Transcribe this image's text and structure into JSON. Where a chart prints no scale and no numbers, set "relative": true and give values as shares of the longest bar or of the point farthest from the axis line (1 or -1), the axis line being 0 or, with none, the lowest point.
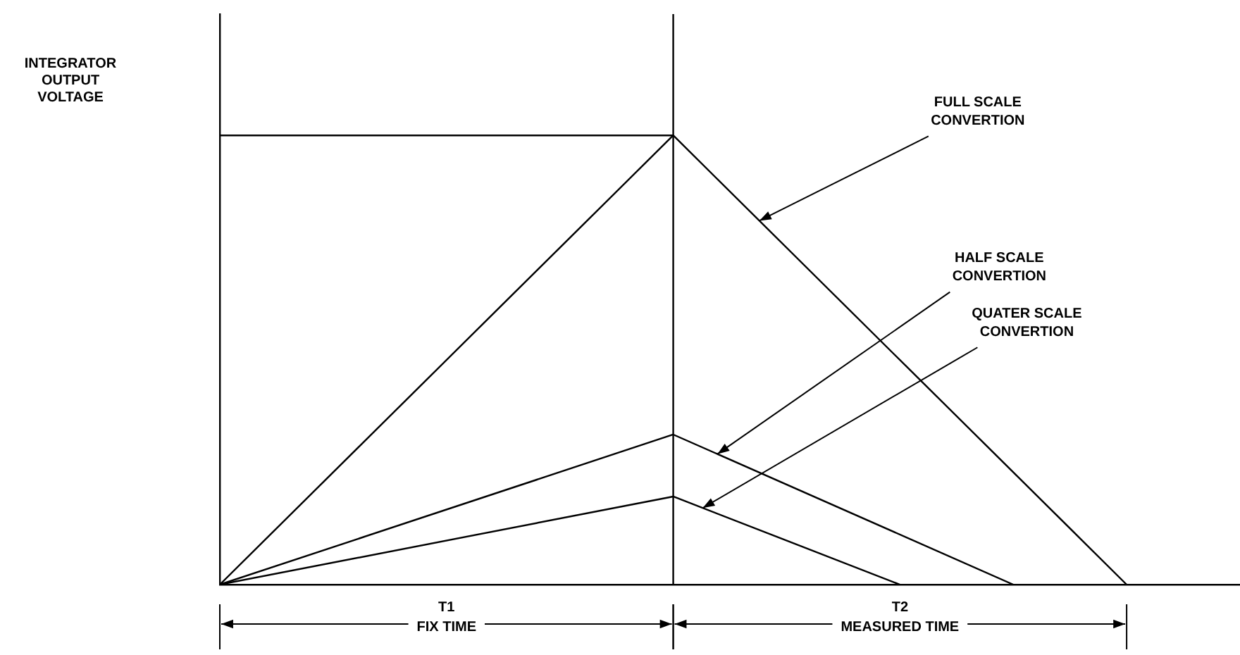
{
  "chart_data": {
    "type": "line",
    "relative": true,
    "grid": false,
    "legend": false,
    "marker": "none",
    "line_style": "solid",
    "categories": [
      null,
      null,
      null,
      null,
      null,
      null,
      null,
      null,
      null,
      null
    ],
    "series": [
      {
        "color": "#000000",
        "values": [
          1,
          null,
          null,
          null,
          1,
          null,
          null,
          null,
          null,
          null
        ]
      },
      {
        "color": "#000000",
        "values": [
          0,
          null,
          null,
          null,
          1,
          null,
          null,
          null,
          0,
          null
        ]
      },
      {
        "color": "#000000",
        "values": [
          0,
          null,
          null,
          null,
          0.334,
          null,
          null,
          0,
          null,
          null
        ]
      },
      {
        "color": "#000000",
        "values": [
          0,
          null,
          null,
          null,
          0.196,
          null,
          0,
          null,
          null,
          null
        ]
      }
    ],
    "annotations": [
      "INTEGRATOR\nOUTPUT\nVOLTAGE",
      "FULL SCALE\nCONVERTION",
      "HALF SCALE\nCONVERTION",
      "QUATER SCALE\nCONVERTION",
      "T1\nFIX TIME",
      "T2\nMEASURED TIME"
    ]
  }
}
